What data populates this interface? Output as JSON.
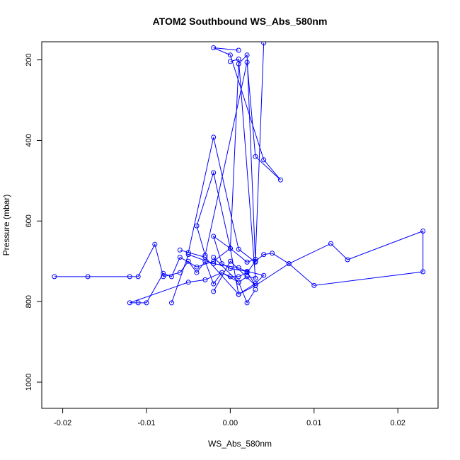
{
  "chart_data": {
    "type": "line",
    "title": "ATOM2 Southbound WS_Abs_580nm",
    "xlabel": "WS_Abs_580nm",
    "ylabel": "Pressure (mbar)",
    "xlim": [
      -0.0225,
      0.0248
    ],
    "ylim": [
      1065,
      155
    ],
    "y_reversed": true,
    "x_ticks": [
      -0.02,
      -0.01,
      0.0,
      0.01,
      0.02
    ],
    "x_tick_labels": [
      "-0.02",
      "-0.01",
      "0.00",
      "0.01",
      "0.02"
    ],
    "y_ticks": [
      200,
      400,
      600,
      800,
      1000
    ],
    "y_tick_labels": [
      "200",
      "400",
      "600",
      "800",
      "1000"
    ],
    "grid": false,
    "marker": "open-circle",
    "series_color": "#0000ff",
    "series": [
      {
        "x": [
          -0.021,
          -0.017,
          -0.012,
          -0.011,
          -0.009,
          -0.008,
          -0.006,
          -0.005,
          -0.004,
          -0.003,
          -0.002,
          -0.001,
          0.0,
          0.001,
          0.002,
          0.003,
          0.004,
          0.005,
          0.007,
          0.012,
          0.014,
          0.023,
          0.023,
          0.01,
          0.007,
          0.003,
          0.001,
          0.0,
          -0.002,
          -0.004,
          -0.006,
          -0.007,
          -0.008,
          -0.01,
          -0.011,
          -0.012,
          -0.005,
          -0.003,
          -0.001,
          0.001,
          0.002,
          0.003
        ],
        "y": [
          738,
          738,
          738,
          738,
          658,
          738,
          728,
          700,
          728,
          700,
          756,
          728,
          738,
          738,
          728,
          700,
          683,
          680,
          706,
          656,
          696,
          625,
          726,
          760,
          706,
          760,
          782,
          668,
          700,
          714,
          690,
          738,
          730,
          803,
          803,
          803,
          752,
          746,
          728,
          752,
          803,
          770
        ]
      },
      {
        "x": [
          0.001,
          -0.002,
          0.0,
          0.004,
          0.006,
          0.003,
          0.002,
          -0.003,
          -0.004,
          -0.002,
          0.0,
          0.001,
          0.002,
          0.003,
          0.001,
          -0.002,
          -0.005,
          -0.006,
          -0.003,
          0.001,
          0.003,
          0.004,
          0.002,
          0.0,
          -0.001,
          -0.002,
          0.0,
          0.002,
          0.003,
          0.004
        ],
        "y": [
          176,
          170,
          188,
          448,
          498,
          440,
          206,
          685,
          612,
          480,
          668,
          210,
          188,
          702,
          670,
          392,
          678,
          672,
          690,
          782,
          755,
          735,
          725,
          718,
          706,
          638,
          668,
          702,
          695,
          158
        ]
      },
      {
        "x": [
          -0.002,
          0.001,
          0.002,
          0.003,
          0.001,
          0.0
        ],
        "y": [
          690,
          752,
          738,
          742,
          198,
          204
        ]
      },
      {
        "x": [
          -0.007,
          -0.005,
          -0.002,
          0.001,
          0.002,
          0.003,
          0.0,
          -0.002
        ],
        "y": [
          803,
          683,
          706,
          716,
          726,
          760,
          700,
          775
        ]
      }
    ]
  }
}
